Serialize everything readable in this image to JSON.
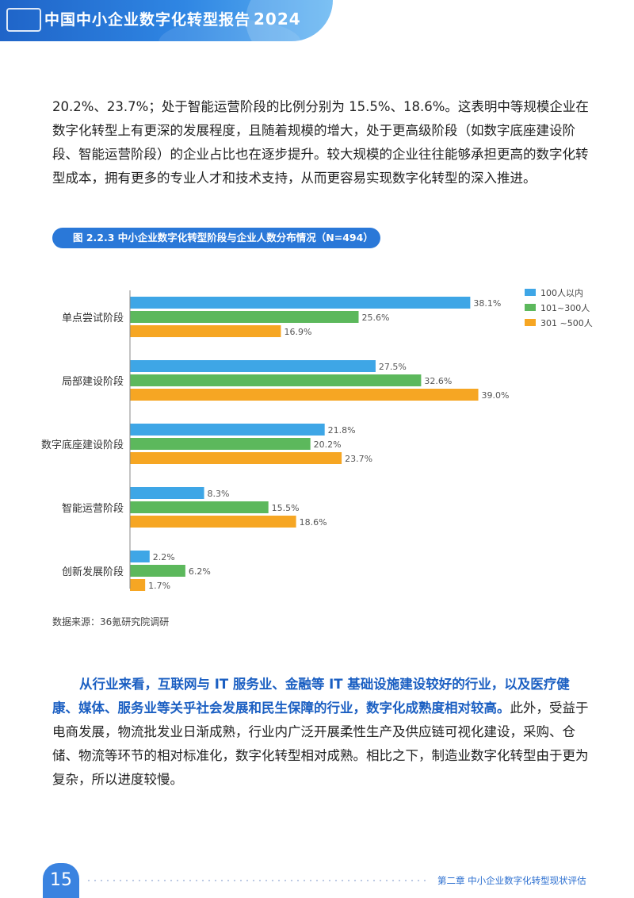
{
  "header": {
    "title": "中国中小企业数字化转型报告",
    "year": "2024"
  },
  "body": {
    "paragraph1": "20.2%、23.7%；处于智能运营阶段的比例分别为 15.5%、18.6%。这表明中等规模企业在数字化转型上有更深的发展程度，且随着规模的增大，处于更高级阶段（如数字底座建设阶段、智能运营阶段）的企业占比也在逐步提升。较大规模的企业往往能够承担更高的数字化转型成本，拥有更多的专业人才和技术支持，从而更容易实现数字化转型的深入推进。",
    "paragraph2_bold": "从行业来看，互联网与 IT 服务业、金融等 IT 基础设施建设较好的行业，以及医疗健康、媒体、服务业等关乎社会发展和民生保障的行业，数字化成熟度相对较高。",
    "paragraph2_rest": "此外，受益于电商发展，物流批发业日渐成熟，行业内广泛开展柔性生产及供应链可视化建设，采购、仓储、物流等环节的相对标准化，数字化转型相对成熟。相比之下，制造业数字化转型由于更为复杂，所以进度较慢。"
  },
  "figure": {
    "title": "图 2.2.3 中小企业数字化转型阶段与企业人数分布情况（N=494）",
    "source": "数据来源：36氪研究院调研"
  },
  "chart_data": {
    "type": "bar",
    "orientation": "horizontal",
    "title": "图 2.2.3 中小企业数字化转型阶段与企业人数分布情况（N=494）",
    "categories": [
      "单点尝试阶段",
      "局部建设阶段",
      "数字底座建设阶段",
      "智能运营阶段",
      "创新发展阶段"
    ],
    "series": [
      {
        "name": "100人以内",
        "color": "#3ea6e6",
        "values": [
          38.1,
          27.5,
          21.8,
          8.3,
          2.2
        ]
      },
      {
        "name": "101~300人",
        "color": "#5cb85c",
        "values": [
          25.6,
          32.6,
          20.2,
          15.5,
          6.2
        ]
      },
      {
        "name": "301 ~500人",
        "color": "#f6a623",
        "values": [
          16.9,
          39.0,
          23.7,
          18.6,
          1.7
        ]
      }
    ],
    "value_suffix": "%",
    "legend": "top-right",
    "grid": false
  },
  "footer": {
    "page_number": "15",
    "chapter": "第二章 中小企业数字化转型现状评估"
  }
}
